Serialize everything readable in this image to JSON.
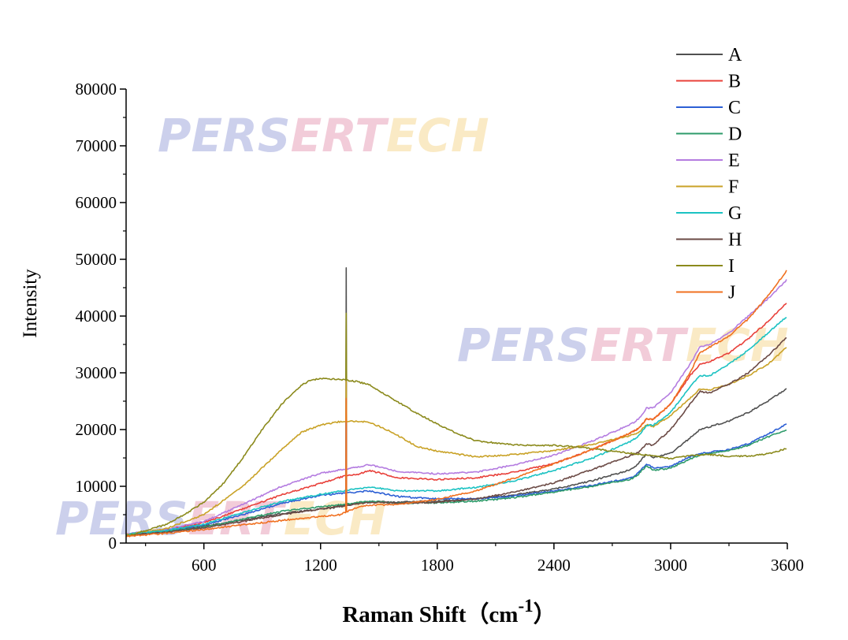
{
  "chart_data": {
    "type": "line",
    "title": "",
    "xlabel": "Raman Shift（cm",
    "xlabel_sup": "-1",
    "xlabel_close": "）",
    "ylabel": "Intensity",
    "xlim": [
      200,
      3600
    ],
    "ylim": [
      0,
      80000
    ],
    "xticks": [
      600,
      1200,
      1800,
      2400,
      3000,
      3600
    ],
    "yticks": [
      0,
      10000,
      20000,
      30000,
      40000,
      50000,
      60000,
      70000,
      80000
    ],
    "legend_position": "top-right",
    "watermark": "PERSERTECH",
    "series": [
      {
        "name": "A",
        "color": "#505050",
        "peak": 48500,
        "x": [
          200,
          400,
          600,
          800,
          1000,
          1200,
          1290,
          1350,
          1450,
          1600,
          1800,
          2000,
          2200,
          2400,
          2600,
          2800,
          2850,
          2900,
          3000,
          3100,
          3150,
          3200,
          3300,
          3400,
          3500,
          3600
        ],
        "y": [
          1300,
          2000,
          3000,
          4000,
          5200,
          6000,
          6300,
          6800,
          7300,
          7200,
          7400,
          7800,
          8500,
          9500,
          11000,
          13000,
          14500,
          15000,
          15800,
          18500,
          20000,
          20500,
          21500,
          23000,
          25000,
          27300
        ]
      },
      {
        "name": "B",
        "color": "#E8403A",
        "peak": 0,
        "x": [
          200,
          400,
          600,
          800,
          1000,
          1200,
          1320,
          1400,
          1450,
          1600,
          1800,
          2000,
          2200,
          2400,
          2600,
          2800,
          2900,
          3000,
          3100,
          3150,
          3200,
          3300,
          3400,
          3500,
          3600
        ],
        "y": [
          1500,
          2300,
          3600,
          6000,
          8500,
          10500,
          11800,
          12200,
          12800,
          11500,
          11200,
          11500,
          12500,
          14000,
          16500,
          19500,
          21500,
          24500,
          29500,
          31500,
          32000,
          33500,
          36000,
          39000,
          42500
        ]
      },
      {
        "name": "C",
        "color": "#2C5FD4",
        "peak": 0,
        "x": [
          200,
          400,
          600,
          800,
          1000,
          1200,
          1320,
          1450,
          1600,
          1800,
          2000,
          2200,
          2400,
          2600,
          2800,
          2850,
          2900,
          3000,
          3100,
          3150,
          3200,
          3300,
          3400,
          3500,
          3600
        ],
        "y": [
          1500,
          2200,
          3200,
          5000,
          7000,
          8400,
          8800,
          9200,
          8200,
          7800,
          7800,
          8300,
          9200,
          10200,
          11500,
          12800,
          13200,
          13500,
          15200,
          15800,
          16000,
          16500,
          17500,
          19200,
          21000
        ]
      },
      {
        "name": "D",
        "color": "#2E9B6A",
        "peak": 0,
        "x": [
          200,
          400,
          600,
          800,
          1000,
          1200,
          1320,
          1450,
          1600,
          1800,
          2000,
          2200,
          2400,
          2600,
          2800,
          2850,
          2900,
          3000,
          3100,
          3150,
          3200,
          3300,
          3400,
          3500,
          3600
        ],
        "y": [
          1400,
          2000,
          2800,
          4200,
          5600,
          6400,
          6800,
          7400,
          7000,
          7100,
          7400,
          8000,
          9000,
          10000,
          11300,
          12500,
          12800,
          13200,
          14800,
          15500,
          15800,
          16300,
          17200,
          18700,
          20000
        ]
      },
      {
        "name": "E",
        "color": "#B47CE0",
        "peak": 0,
        "x": [
          200,
          400,
          600,
          800,
          1000,
          1200,
          1320,
          1450,
          1600,
          1800,
          2000,
          2200,
          2400,
          2600,
          2800,
          2900,
          3000,
          3100,
          3150,
          3200,
          3300,
          3400,
          3500,
          3600
        ],
        "y": [
          1600,
          2400,
          3800,
          6800,
          10000,
          12300,
          13000,
          13800,
          12600,
          12200,
          12500,
          13800,
          15500,
          18000,
          21000,
          23500,
          26500,
          31500,
          34500,
          35000,
          37000,
          40000,
          43000,
          46500
        ]
      },
      {
        "name": "F",
        "color": "#C9A227",
        "peak": 30000,
        "x": [
          200,
          400,
          600,
          800,
          1000,
          1100,
          1200,
          1300,
          1380,
          1450,
          1550,
          1700,
          1800,
          2000,
          2200,
          2400,
          2600,
          2800,
          2900,
          3000,
          3100,
          3150,
          3200,
          3300,
          3400,
          3500,
          3600
        ],
        "y": [
          1500,
          2500,
          5000,
          10000,
          16500,
          19500,
          20800,
          21400,
          21500,
          21300,
          19800,
          17000,
          16200,
          15200,
          15600,
          16300,
          17400,
          19000,
          20300,
          22500,
          25500,
          27200,
          27000,
          28000,
          29500,
          31500,
          34600
        ]
      },
      {
        "name": "G",
        "color": "#1BC2C2",
        "peak": 0,
        "x": [
          200,
          400,
          600,
          800,
          1000,
          1200,
          1320,
          1450,
          1600,
          1800,
          2000,
          2200,
          2400,
          2600,
          2800,
          2900,
          3000,
          3100,
          3150,
          3200,
          3300,
          3400,
          3500,
          3600
        ],
        "y": [
          1500,
          2200,
          3300,
          5400,
          7300,
          8600,
          9200,
          9900,
          9200,
          9200,
          9800,
          11000,
          12800,
          15000,
          18000,
          20500,
          23000,
          27500,
          29500,
          29500,
          31500,
          34000,
          37000,
          40000
        ]
      },
      {
        "name": "H",
        "color": "#6B4A45",
        "peak": 0,
        "x": [
          200,
          400,
          600,
          800,
          1000,
          1200,
          1320,
          1450,
          1600,
          1800,
          2000,
          2200,
          2400,
          2600,
          2800,
          2900,
          3000,
          3100,
          3150,
          3200,
          3300,
          3400,
          3500,
          3600
        ],
        "y": [
          1300,
          1900,
          2700,
          3800,
          5000,
          6000,
          6600,
          7200,
          7000,
          7200,
          7800,
          9000,
          10600,
          13000,
          15500,
          17000,
          20000,
          24500,
          26700,
          26500,
          28000,
          30000,
          33000,
          36300
        ]
      },
      {
        "name": "I",
        "color": "#8B8A1C",
        "peak": 40500,
        "x": [
          200,
          300,
          400,
          500,
          600,
          700,
          800,
          900,
          1000,
          1100,
          1150,
          1200,
          1250,
          1300,
          1380,
          1450,
          1550,
          1700,
          1800,
          1900,
          2000,
          2200,
          2400,
          2500,
          2600,
          2700,
          2800,
          2900,
          3000,
          3100,
          3200,
          3300,
          3400,
          3500,
          3600
        ],
        "y": [
          1200,
          2200,
          3200,
          5000,
          7200,
          10500,
          15000,
          20000,
          24500,
          27800,
          28700,
          29000,
          28900,
          28800,
          28500,
          27900,
          25800,
          22800,
          21000,
          19300,
          18000,
          17300,
          17200,
          17000,
          16600,
          16200,
          15800,
          15400,
          14900,
          15400,
          15600,
          15300,
          15300,
          15700,
          16700
        ]
      },
      {
        "name": "J",
        "color": "#F07020",
        "peak": 25500,
        "x": [
          200,
          400,
          600,
          800,
          1000,
          1200,
          1300,
          1400,
          1500,
          1600,
          1800,
          2000,
          2200,
          2400,
          2600,
          2800,
          2900,
          3000,
          3100,
          3150,
          3200,
          3300,
          3400,
          3500,
          3600
        ],
        "y": [
          1200,
          1700,
          2400,
          3200,
          4000,
          4700,
          5000,
          6500,
          6700,
          6800,
          7700,
          9200,
          11500,
          14000,
          16500,
          19500,
          21500,
          24500,
          30000,
          33500,
          34500,
          36500,
          39500,
          43500,
          48200
        ]
      }
    ]
  }
}
